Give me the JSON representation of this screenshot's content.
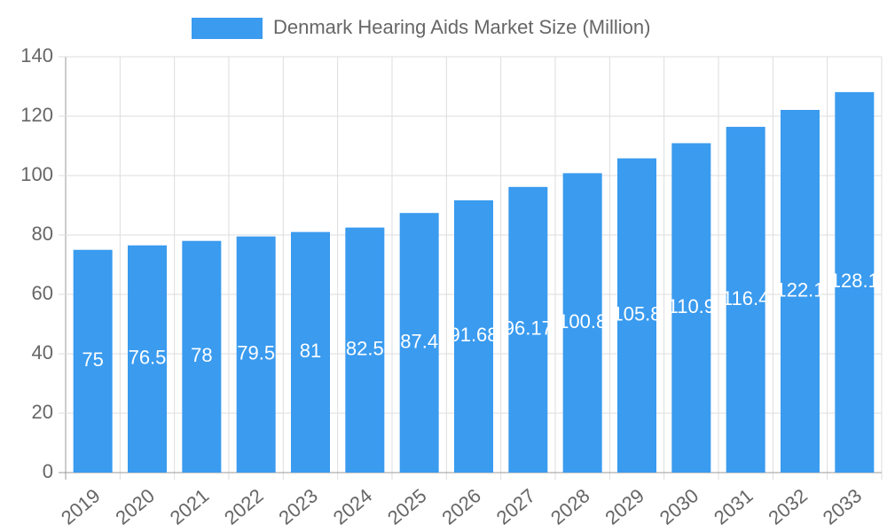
{
  "chart_data": {
    "type": "bar",
    "categories": [
      "2019",
      "2020",
      "2021",
      "2022",
      "2023",
      "2024",
      "2025",
      "2026",
      "2027",
      "2028",
      "2029",
      "2030",
      "2031",
      "2032",
      "2033"
    ],
    "series": [
      {
        "name": "Denmark Hearing Aids Market Size (Million)",
        "color": "#3a9bef",
        "values": [
          75,
          76.5,
          78,
          79.5,
          81,
          82.5,
          87.4,
          91.68,
          96.17,
          100.8,
          105.8,
          110.9,
          116.4,
          122.1,
          128.1
        ]
      }
    ],
    "ylim": [
      0,
      140
    ],
    "yticks": [
      0,
      20,
      40,
      60,
      80,
      100,
      120,
      140
    ],
    "grid": true,
    "legend": "top"
  }
}
